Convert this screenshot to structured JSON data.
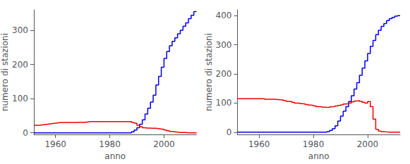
{
  "chart_data": [
    {
      "type": "step",
      "xlabel": "anno",
      "ylabel": "numero di stazioni",
      "xlim": [
        1952,
        2012
      ],
      "ylim": [
        -5,
        360
      ],
      "xticks": [
        1960,
        1980,
        2000
      ],
      "yticks": [
        0,
        100,
        200,
        300
      ],
      "grid": false,
      "series": [
        {
          "color": "#0000ee",
          "x": [
            1952,
            1987,
            1988,
            1989,
            1990,
            1991,
            1992,
            1993,
            1994,
            1995,
            1996,
            1997,
            1998,
            1999,
            2000,
            2001,
            2002,
            2003,
            2004,
            2005,
            2006,
            2007,
            2008,
            2009,
            2010,
            2011,
            2012
          ],
          "values": [
            0,
            0,
            3,
            8,
            15,
            25,
            38,
            55,
            72,
            90,
            110,
            140,
            165,
            192,
            218,
            238,
            255,
            268,
            278,
            290,
            300,
            312,
            322,
            334,
            344,
            355,
            355
          ]
        },
        {
          "color": "#ee0000",
          "x": [
            1952,
            1953,
            1954,
            1955,
            1956,
            1957,
            1958,
            1959,
            1960,
            1961,
            1962,
            1963,
            1964,
            1965,
            1966,
            1967,
            1968,
            1969,
            1970,
            1971,
            1972,
            1973,
            1974,
            1975,
            1976,
            1977,
            1978,
            1979,
            1980,
            1981,
            1982,
            1983,
            1984,
            1985,
            1986,
            1987,
            1988,
            1989,
            1990,
            1991,
            1992,
            1993,
            1994,
            1995,
            1996,
            1997,
            1998,
            1999,
            2000,
            2001,
            2002,
            2003,
            2004,
            2005,
            2006,
            2007,
            2008,
            2009,
            2010,
            2011,
            2012
          ],
          "values": [
            22,
            22,
            23,
            24,
            25,
            26,
            27,
            28,
            29,
            30,
            30,
            30,
            30,
            30,
            30,
            30,
            31,
            31,
            31,
            32,
            33,
            33,
            33,
            33,
            33,
            33,
            33,
            33,
            33,
            33,
            33,
            33,
            33,
            33,
            33,
            33,
            30,
            28,
            22,
            18,
            15,
            14,
            14,
            13,
            13,
            12,
            11,
            10,
            8,
            6,
            4,
            3,
            2,
            1,
            1,
            1,
            0,
            0,
            0,
            0,
            0
          ]
        }
      ]
    },
    {
      "type": "step",
      "xlabel": "anno",
      "ylabel": "numero di stazioni",
      "xlim": [
        1952,
        2012
      ],
      "ylim": [
        -8,
        420
      ],
      "xticks": [
        1960,
        1980,
        2000
      ],
      "yticks": [
        0,
        100,
        200,
        300,
        400
      ],
      "grid": false,
      "series": [
        {
          "color": "#0000ee",
          "x": [
            1952,
            1984,
            1985,
            1986,
            1987,
            1988,
            1989,
            1990,
            1991,
            1992,
            1993,
            1994,
            1995,
            1996,
            1997,
            1998,
            1999,
            2000,
            2001,
            2002,
            2003,
            2004,
            2005,
            2006,
            2007,
            2008,
            2009,
            2010,
            2011,
            2012
          ],
          "values": [
            0,
            0,
            2,
            6,
            12,
            22,
            38,
            55,
            72,
            88,
            105,
            125,
            148,
            170,
            195,
            220,
            245,
            270,
            295,
            315,
            335,
            350,
            363,
            373,
            383,
            390,
            394,
            398,
            400,
            400
          ]
        },
        {
          "color": "#ee0000",
          "x": [
            1952,
            1953,
            1954,
            1955,
            1956,
            1957,
            1958,
            1959,
            1960,
            1961,
            1962,
            1963,
            1964,
            1965,
            1966,
            1967,
            1968,
            1969,
            1970,
            1971,
            1972,
            1973,
            1974,
            1975,
            1976,
            1977,
            1978,
            1979,
            1980,
            1981,
            1982,
            1983,
            1984,
            1985,
            1986,
            1987,
            1988,
            1989,
            1990,
            1991,
            1992,
            1993,
            1994,
            1995,
            1996,
            1997,
            1998,
            1999,
            2000,
            2001,
            2002,
            2003,
            2004,
            2005,
            2006,
            2007,
            2008,
            2009,
            2010,
            2011,
            2012
          ],
          "values": [
            115,
            115,
            115,
            115,
            115,
            115,
            115,
            115,
            115,
            115,
            113,
            113,
            113,
            113,
            112,
            111,
            110,
            108,
            106,
            105,
            103,
            100,
            100,
            98,
            97,
            95,
            93,
            92,
            90,
            88,
            88,
            86,
            85,
            85,
            87,
            88,
            90,
            92,
            94,
            97,
            98,
            100,
            104,
            107,
            108,
            106,
            103,
            100,
            105,
            88,
            45,
            10,
            4,
            2,
            1,
            0,
            0,
            0,
            0,
            0,
            0
          ]
        }
      ]
    }
  ]
}
